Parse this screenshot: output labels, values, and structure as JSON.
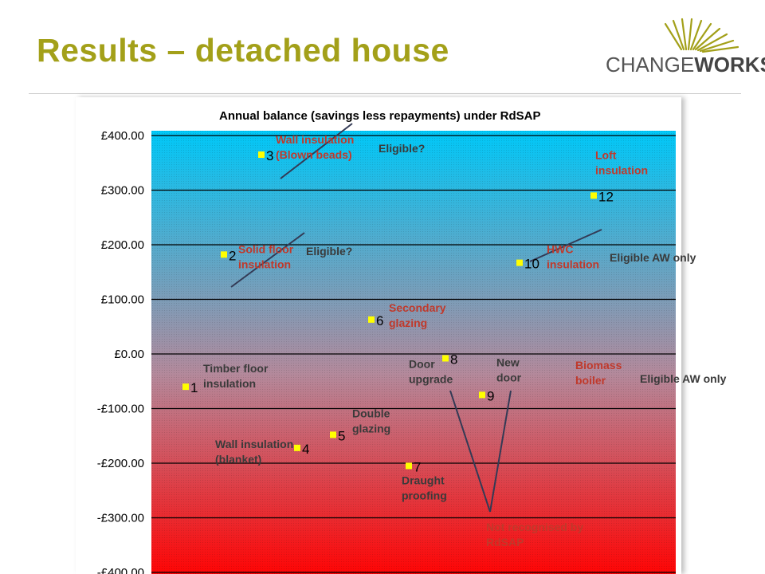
{
  "slide": {
    "title": "Results – detached house"
  },
  "logo": {
    "text_light": "CHANGE",
    "text_bold": "WORKS"
  },
  "chart_data": {
    "type": "scatter",
    "title": "Annual balance (savings less repayments) under RdSAP",
    "ylim": [
      -400,
      400
    ],
    "yticks": [
      400,
      300,
      200,
      100,
      0,
      -100,
      -200,
      -300,
      -400
    ],
    "ytick_labels": [
      "£400.00",
      "£300.00",
      "£200.00",
      "£100.00",
      "£0.00",
      "-£100.00",
      "-£200.00",
      "-£300.00",
      "-£400.00"
    ],
    "points": [
      {
        "id": "1",
        "x": 1,
        "y": -60,
        "label": [
          "Timber floor",
          "insulation"
        ]
      },
      {
        "id": "2",
        "x": 2,
        "y": 182,
        "label": [
          "Solid floor",
          "insulation"
        ]
      },
      {
        "id": "3",
        "x": 3,
        "y": 365,
        "label": [
          "Wall insulation",
          "(Blown beads)"
        ]
      },
      {
        "id": "4",
        "x": 4,
        "y": -172,
        "label": [
          "Wall insulation",
          "(blanket)"
        ]
      },
      {
        "id": "5",
        "x": 5,
        "y": -148,
        "label": [
          "Double",
          "glazing"
        ]
      },
      {
        "id": "6",
        "x": 6,
        "y": 63,
        "label": [
          "Secondary",
          "glazing"
        ]
      },
      {
        "id": "7",
        "x": 7,
        "y": -205,
        "label": [
          "Draught",
          "proofing"
        ]
      },
      {
        "id": "8",
        "x": 8,
        "y": -8,
        "label": [
          "Door",
          "upgrade"
        ]
      },
      {
        "id": "9",
        "x": 9,
        "y": -75,
        "label": [
          "New",
          "door"
        ]
      },
      {
        "id": "10",
        "x": 10,
        "y": 167,
        "label": [
          "HWC",
          "insulation"
        ]
      },
      {
        "id": "12",
        "x": 12,
        "y": 290,
        "label": [
          "Loft",
          "insulation"
        ]
      }
    ],
    "extra_labels": {
      "biomass": [
        "Biomass",
        "boiler"
      ],
      "not_recognised": [
        "Not recognised by",
        "RdSAP"
      ]
    },
    "annotations": {
      "eligible_1": "Eligible?",
      "eligible_2": "Eligible?",
      "eligible_aw_1": "Eligible AW only",
      "eligible_aw_2": "Eligible AW only"
    },
    "colors": {
      "top": "#00c8f8",
      "bottom": "#ff0000",
      "marker": "#ffff00",
      "label_red": "#c0392b",
      "title_olive": "#a3a019"
    }
  }
}
